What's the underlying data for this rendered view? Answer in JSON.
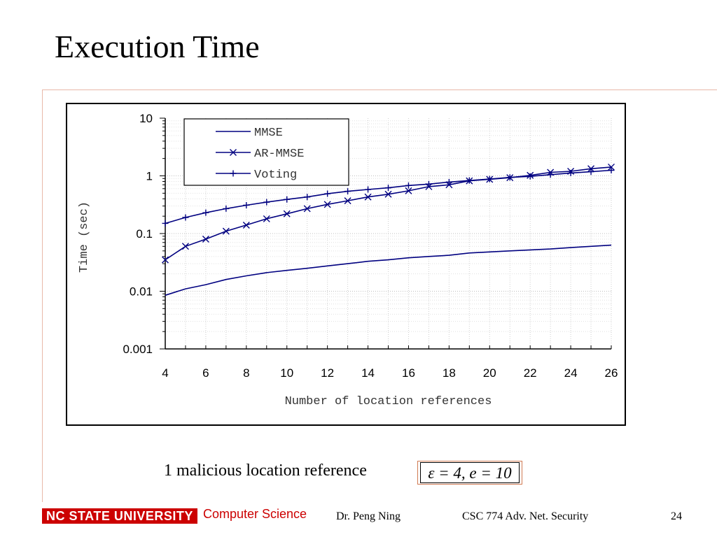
{
  "slide": {
    "title": "Execution Time",
    "caption": "1 malicious location reference",
    "formula": "ε = 4, e = 10"
  },
  "footer": {
    "brand": "NC STATE UNIVERSITY",
    "department": "Computer Science",
    "author": "Dr. Peng Ning",
    "course": "CSC 774 Adv. Net. Security",
    "page": "24"
  },
  "colors": {
    "series": "#000080",
    "accent": "#cc0000",
    "rule": "#e8b8a8"
  },
  "chart_data": {
    "type": "line",
    "xlabel": "Number of location references",
    "ylabel": "Time (sec)",
    "xlim": [
      4,
      26
    ],
    "ylim": [
      0.001,
      10
    ],
    "yscale": "log",
    "x_ticks": [
      "4",
      "6",
      "8",
      "10",
      "12",
      "14",
      "16",
      "18",
      "20",
      "22",
      "24",
      "26"
    ],
    "y_ticks": [
      "10",
      "1",
      "0.1",
      "0.01",
      "0.001"
    ],
    "grid": true,
    "legend_position": "top-left",
    "x": [
      4,
      5,
      6,
      7,
      8,
      9,
      10,
      11,
      12,
      13,
      14,
      15,
      16,
      17,
      18,
      19,
      20,
      21,
      22,
      23,
      24,
      25,
      26
    ],
    "series": [
      {
        "name": "MMSE",
        "marker": "none",
        "values": [
          0.0085,
          0.011,
          0.013,
          0.016,
          0.0185,
          0.021,
          0.023,
          0.025,
          0.0275,
          0.03,
          0.033,
          0.035,
          0.038,
          0.04,
          0.042,
          0.046,
          0.048,
          0.05,
          0.052,
          0.054,
          0.057,
          0.06,
          0.063
        ]
      },
      {
        "name": "AR-MMSE",
        "marker": "x",
        "values": [
          0.035,
          0.06,
          0.08,
          0.11,
          0.14,
          0.18,
          0.22,
          0.27,
          0.32,
          0.37,
          0.43,
          0.48,
          0.55,
          0.65,
          0.7,
          0.82,
          0.87,
          0.93,
          1.02,
          1.15,
          1.2,
          1.33,
          1.42
        ]
      },
      {
        "name": "Voting",
        "marker": "+",
        "values": [
          0.15,
          0.19,
          0.23,
          0.27,
          0.31,
          0.35,
          0.39,
          0.43,
          0.49,
          0.54,
          0.58,
          0.62,
          0.68,
          0.72,
          0.78,
          0.83,
          0.88,
          0.94,
          0.98,
          1.05,
          1.12,
          1.18,
          1.25
        ]
      }
    ]
  }
}
